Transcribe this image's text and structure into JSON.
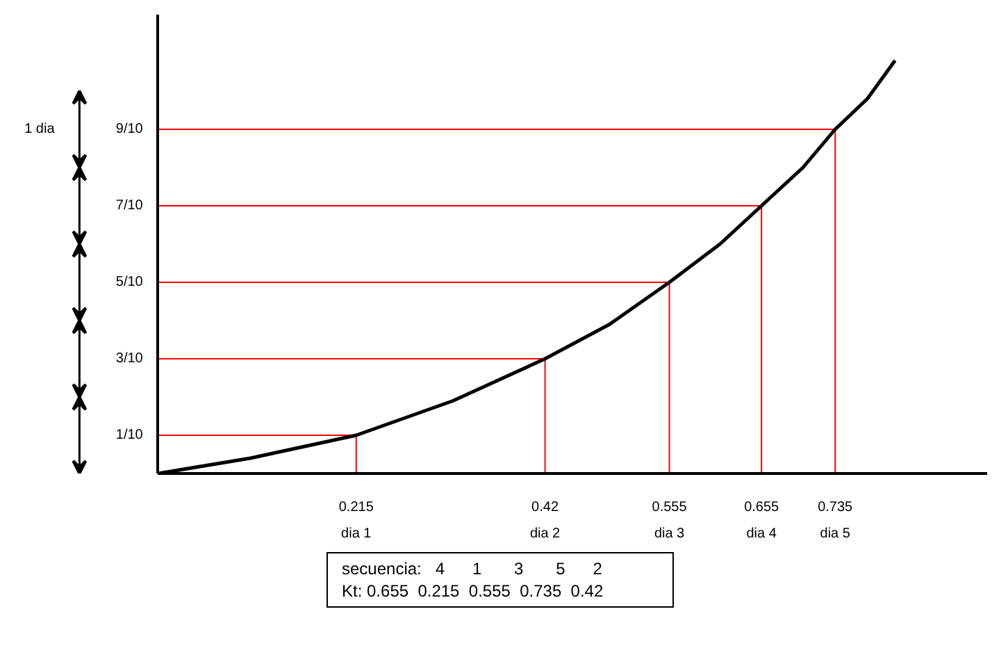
{
  "chart_data": {
    "type": "line",
    "series": [
      {
        "color": "#000000",
        "x": [
          0,
          0.1,
          0.215,
          0.32,
          0.42,
          0.49,
          0.555,
          0.61,
          0.655,
          0.7,
          0.735,
          0.77,
          0.8
        ],
        "values": [
          0,
          0.04,
          0.1,
          0.19,
          0.3,
          0.39,
          0.5,
          0.6,
          0.7,
          0.8,
          0.9,
          0.98,
          1.08
        ]
      }
    ],
    "xlim": [
      0,
      0.9
    ],
    "ylim": [
      0,
      1.2
    ],
    "xticks": [
      0.215,
      0.42,
      0.555,
      0.655,
      0.735
    ],
    "yticks": [
      {
        "value": 0.1,
        "label": "1/10"
      },
      {
        "value": 0.3,
        "label": "3/10"
      },
      {
        "value": 0.5,
        "label": "5/10"
      },
      {
        "value": 0.7,
        "label": "7/10"
      },
      {
        "value": 0.9,
        "label": "9/10"
      }
    ],
    "ref_lines": [
      {
        "axis": "y",
        "value": 0.1,
        "color": "#ff0000"
      },
      {
        "axis": "y",
        "value": 0.3,
        "color": "#ff0000"
      },
      {
        "axis": "y",
        "value": 0.5,
        "color": "#ff0000"
      },
      {
        "axis": "y",
        "value": 0.7,
        "color": "#ff0000"
      },
      {
        "axis": "y",
        "value": 0.9,
        "color": "#ff0000"
      },
      {
        "axis": "x",
        "value": 0.215,
        "color": "#ff0000"
      },
      {
        "axis": "x",
        "value": 0.42,
        "color": "#ff0000"
      },
      {
        "axis": "x",
        "value": 0.555,
        "color": "#ff0000"
      },
      {
        "axis": "x",
        "value": 0.655,
        "color": "#ff0000"
      },
      {
        "axis": "x",
        "value": 0.735,
        "color": "#ff0000"
      }
    ],
    "annotations": [
      "1 dia",
      "dia 1",
      "dia 2",
      "dia 3",
      "dia 4",
      "dia 5",
      "secuencia:   4      1       3       5      2",
      "Kt: 0.655  0.215  0.555  0.735  0.42"
    ],
    "grid": false
  }
}
